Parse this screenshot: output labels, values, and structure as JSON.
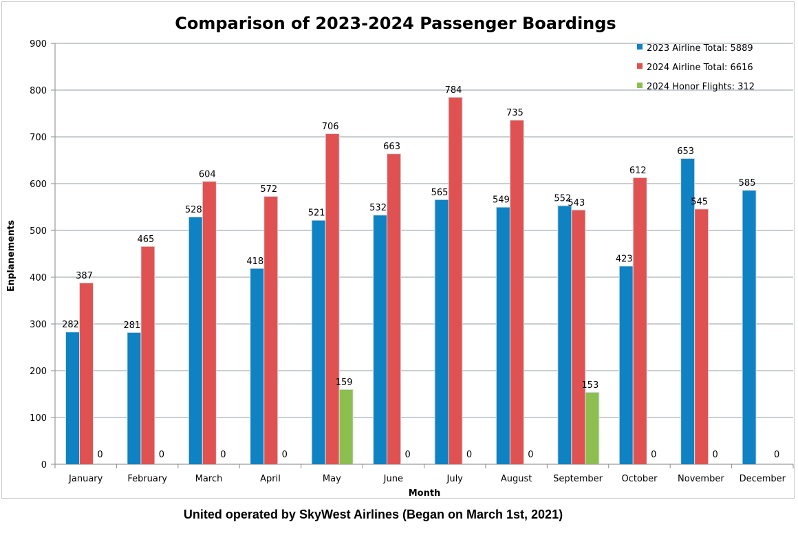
{
  "chart_data": {
    "type": "bar",
    "title": "Comparison of 2023-2024 Passenger Boardings",
    "xlabel": "Month",
    "ylabel": "Enplanements",
    "ylim": [
      0,
      900
    ],
    "yticks": [
      0,
      100,
      200,
      300,
      400,
      500,
      600,
      700,
      800,
      900
    ],
    "grid": true,
    "legend_position": "top-right",
    "categories": [
      "January",
      "February",
      "March",
      "April",
      "May",
      "June",
      "July",
      "August",
      "September",
      "October",
      "November",
      "December"
    ],
    "series": [
      {
        "name": "2023 Airline Total: 5889",
        "color": "#0e82c3",
        "values": [
          282,
          281,
          528,
          418,
          521,
          532,
          565,
          549,
          552,
          423,
          653,
          585
        ],
        "labels": [
          "282",
          "281",
          "528",
          "418",
          "521",
          "532",
          "565",
          "549",
          "552",
          "423",
          "653",
          "585"
        ]
      },
      {
        "name": "2024 Airline Total: 6616",
        "color": "#e05252",
        "values": [
          387,
          465,
          604,
          572,
          706,
          663,
          784,
          735,
          543,
          612,
          545,
          null
        ],
        "labels": [
          "387",
          "465",
          "604",
          "572",
          "706",
          "663",
          "784",
          "735",
          "543",
          "612",
          "545",
          null
        ]
      },
      {
        "name": "2024 Honor Flights: 312",
        "color": "#8cbf4f",
        "values": [
          0,
          0,
          0,
          0,
          159,
          0,
          0,
          0,
          153,
          0,
          0,
          0
        ],
        "labels": [
          "0",
          "0",
          "0",
          "0",
          "159",
          "0",
          "0",
          "0",
          "153",
          "0",
          "0",
          "0"
        ]
      }
    ]
  },
  "footer": {
    "caption": "United operated by SkyWest Airlines (Began on March 1st, 2021)"
  }
}
